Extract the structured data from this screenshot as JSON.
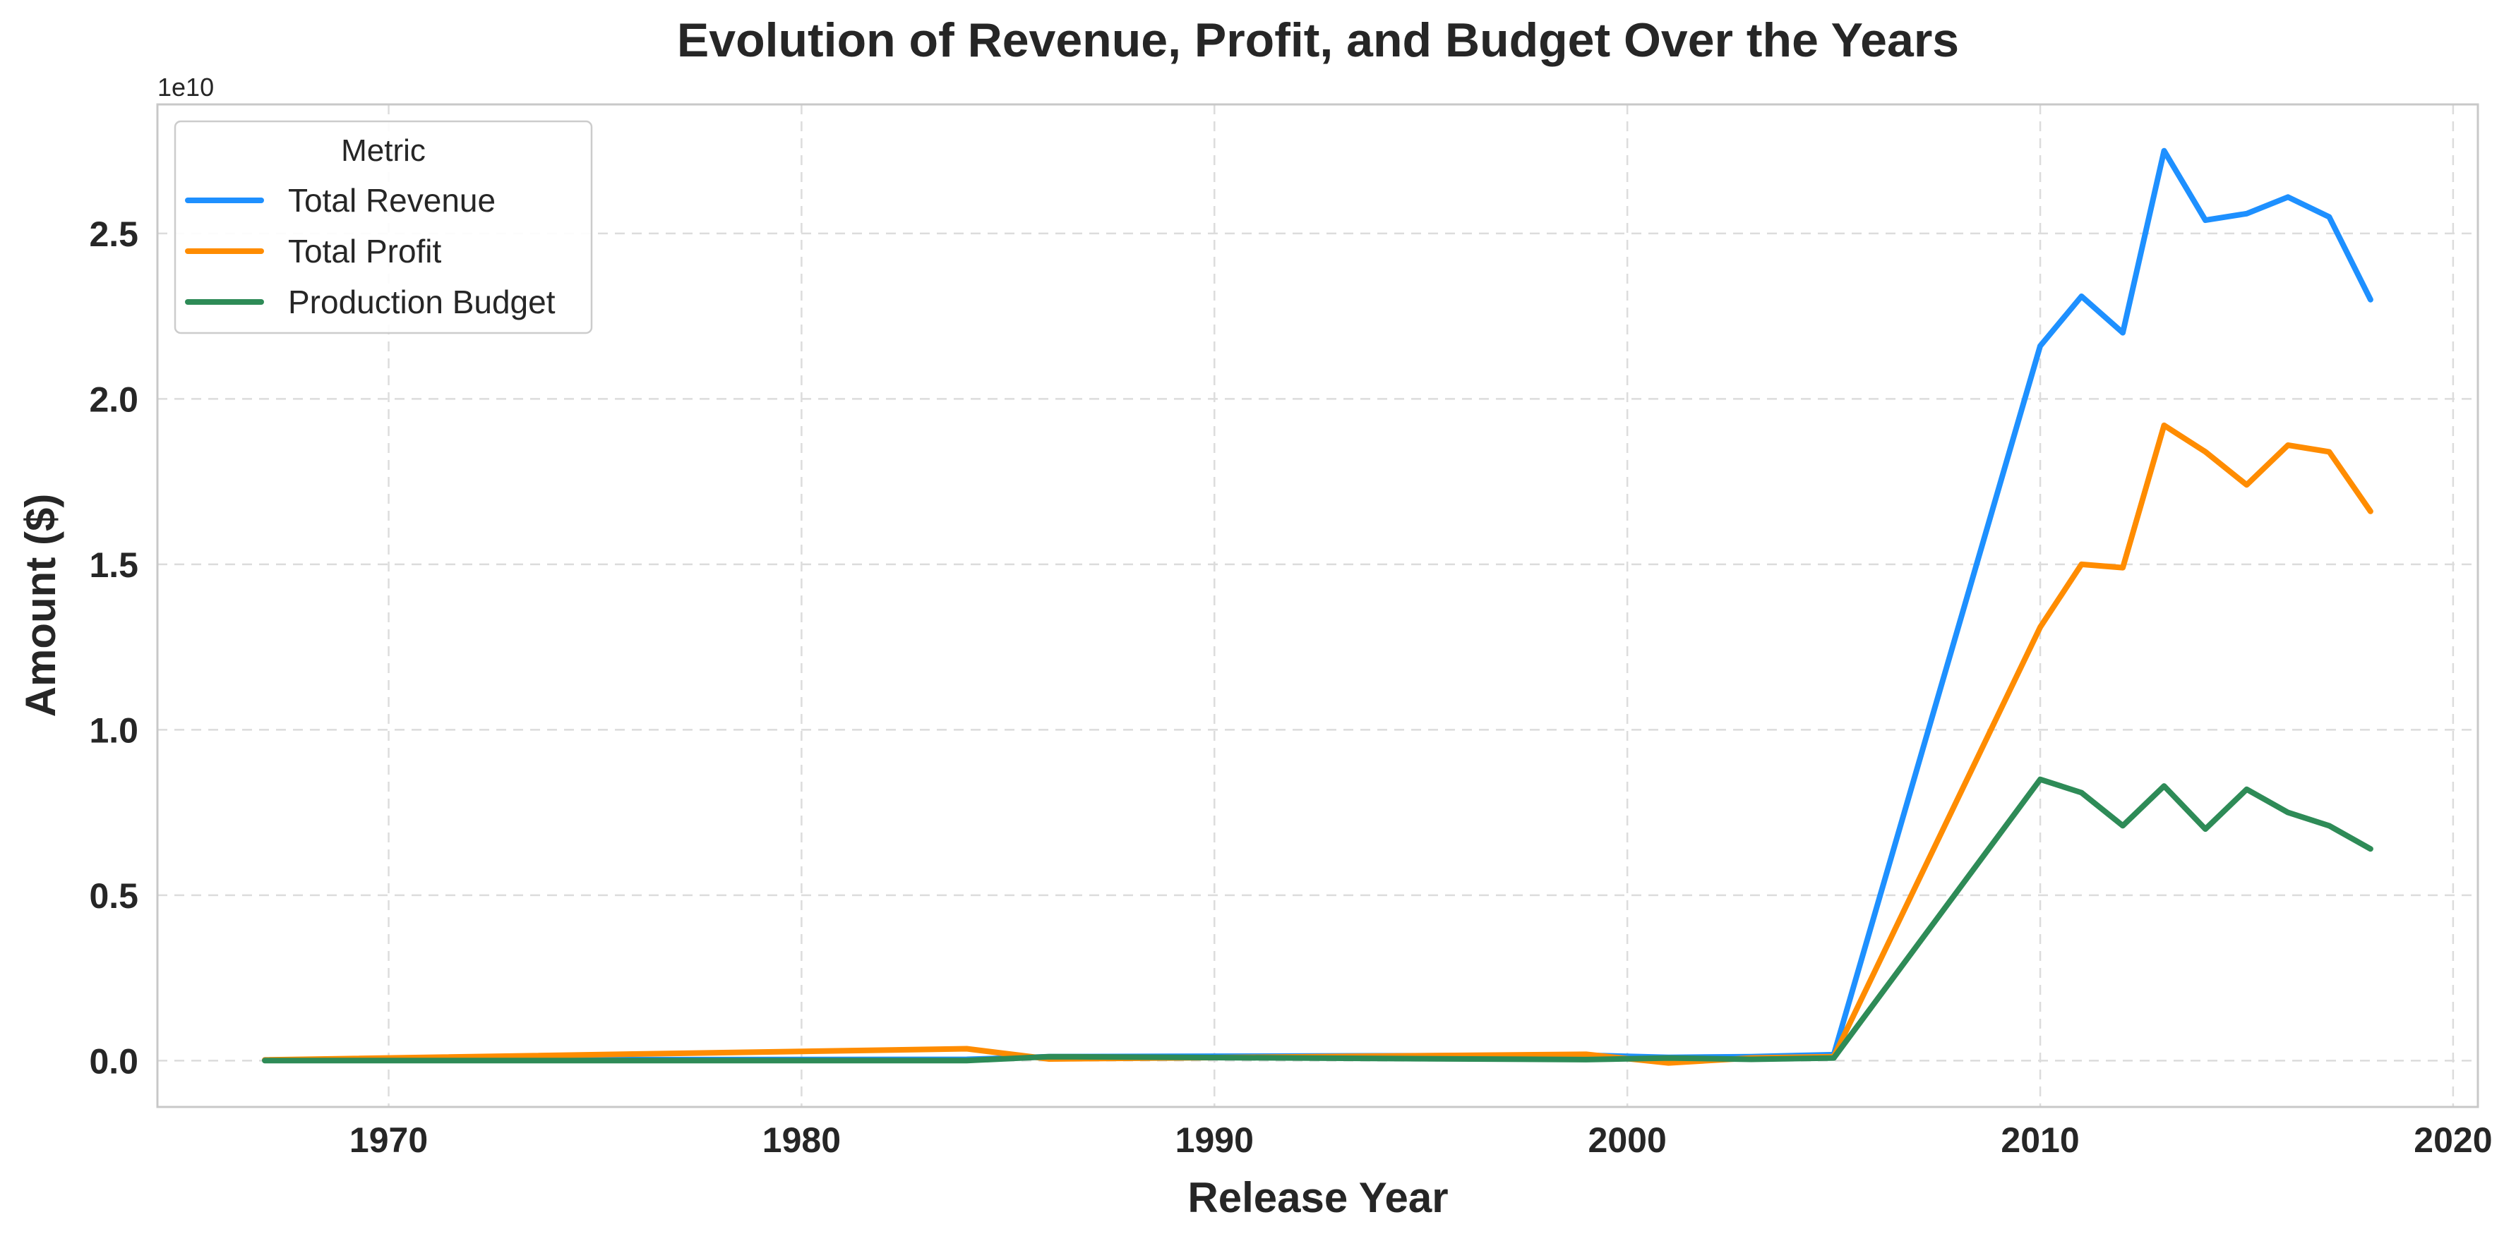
{
  "chart_data": {
    "type": "line",
    "title": "Evolution of Revenue, Profit, and Budget Over the Years",
    "xlabel": "Release Year",
    "ylabel": "Amount ($)",
    "y_offset_label": "1e10",
    "xlim": [
      1964.4,
      2020.6
    ],
    "ylim": [
      -0.14,
      2.89
    ],
    "y_unit_multiplier": 10000000000,
    "x_ticks": [
      1970,
      1980,
      1990,
      2000,
      2010,
      2020
    ],
    "y_ticks": [
      0.0,
      0.5,
      1.0,
      1.5,
      2.0,
      2.5
    ],
    "y_tick_labels": [
      "0.0",
      "0.5",
      "1.0",
      "1.5",
      "2.0",
      "2.5"
    ],
    "grid": true,
    "legend": {
      "title": "Metric",
      "placement": "upper-left"
    },
    "series": [
      {
        "name": "Total Revenue",
        "color": "#1e90ff",
        "points": [
          [
            1967,
            0.002
          ],
          [
            1984,
            0.004
          ],
          [
            1986,
            0.012
          ],
          [
            1999,
            0.016
          ],
          [
            2001,
            0.01
          ],
          [
            2003,
            0.012
          ],
          [
            2005,
            0.018
          ],
          [
            2010,
            2.16
          ],
          [
            2011,
            2.31
          ],
          [
            2012,
            2.2
          ],
          [
            2013,
            2.75
          ],
          [
            2014,
            2.54
          ],
          [
            2015,
            2.56
          ],
          [
            2016,
            2.61
          ],
          [
            2017,
            2.55
          ],
          [
            2018,
            2.3
          ]
        ]
      },
      {
        "name": "Total Profit",
        "color": "#ff8c00",
        "points": [
          [
            1967,
            0.002
          ],
          [
            1984,
            0.036
          ],
          [
            1986,
            0.005
          ],
          [
            1999,
            0.019
          ],
          [
            2001,
            -0.007
          ],
          [
            2003,
            0.008
          ],
          [
            2005,
            0.012
          ],
          [
            2010,
            1.31
          ],
          [
            2011,
            1.5
          ],
          [
            2012,
            1.49
          ],
          [
            2013,
            1.92
          ],
          [
            2014,
            1.84
          ],
          [
            2015,
            1.74
          ],
          [
            2016,
            1.86
          ],
          [
            2017,
            1.84
          ],
          [
            2018,
            1.66
          ]
        ]
      },
      {
        "name": "Production Budget",
        "color": "#2e8b57",
        "points": [
          [
            1967,
            0.0
          ],
          [
            1984,
            0.0
          ],
          [
            1986,
            0.012
          ],
          [
            1999,
            0.003
          ],
          [
            2001,
            0.008
          ],
          [
            2003,
            0.004
          ],
          [
            2005,
            0.008
          ],
          [
            2010,
            0.85
          ],
          [
            2011,
            0.81
          ],
          [
            2012,
            0.71
          ],
          [
            2013,
            0.83
          ],
          [
            2014,
            0.7
          ],
          [
            2015,
            0.82
          ],
          [
            2016,
            0.75
          ],
          [
            2017,
            0.71
          ],
          [
            2018,
            0.64
          ]
        ]
      }
    ]
  }
}
